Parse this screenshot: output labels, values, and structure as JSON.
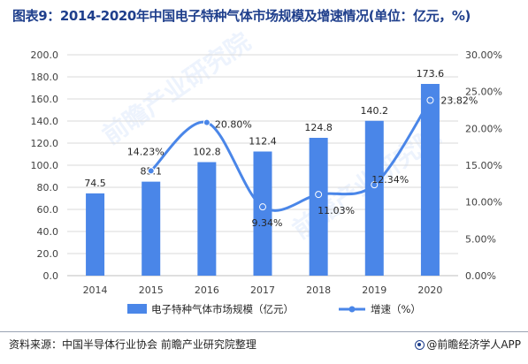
{
  "title": "图表9：2014-2020年中国电子特种气体市场规模及增速情况(单位：亿元，%)",
  "source": "资料来源：中国半导体行业协会 前瞻产业研究院整理",
  "brand": "@前瞻经济学人APP",
  "watermark": "前瞻产业研究院",
  "colors": {
    "bar": "#4a86e8",
    "line": "#4a86e8",
    "title": "#1f3f8c",
    "grid": "#d9d9d9",
    "text": "#404040"
  },
  "chart_data": {
    "type": "bar",
    "categories": [
      "2014",
      "2015",
      "2016",
      "2017",
      "2018",
      "2019",
      "2020"
    ],
    "series": [
      {
        "name": "电子特种气体市场规模（亿元）",
        "type": "bar",
        "axis": "left",
        "values": [
          74.5,
          85.1,
          102.8,
          112.4,
          124.8,
          140.2,
          173.6
        ],
        "labels": [
          "74.5",
          "85.1",
          "102.8",
          "112.4",
          "124.8",
          "140.2",
          "173.6"
        ]
      },
      {
        "name": "增速（%）",
        "type": "line",
        "smooth": true,
        "axis": "right",
        "values": [
          null,
          14.23,
          20.8,
          9.34,
          11.03,
          12.34,
          23.82
        ],
        "labels": [
          "",
          "14.23%",
          "20.80%",
          "9.34%",
          "11.03%",
          "12.34%",
          "23.82%"
        ]
      }
    ],
    "y_left": {
      "min": 0,
      "max": 200,
      "step": 20,
      "ticks": [
        "0.0",
        "20.0",
        "40.0",
        "60.0",
        "80.0",
        "100.0",
        "120.0",
        "140.0",
        "160.0",
        "180.0",
        "200.0"
      ]
    },
    "y_right": {
      "min": 0,
      "max": 30,
      "step": 5,
      "ticks": [
        "0.00%",
        "5.00%",
        "10.00%",
        "15.00%",
        "20.00%",
        "25.00%",
        "30.00%"
      ]
    },
    "grid": true,
    "legend_position": "bottom"
  }
}
